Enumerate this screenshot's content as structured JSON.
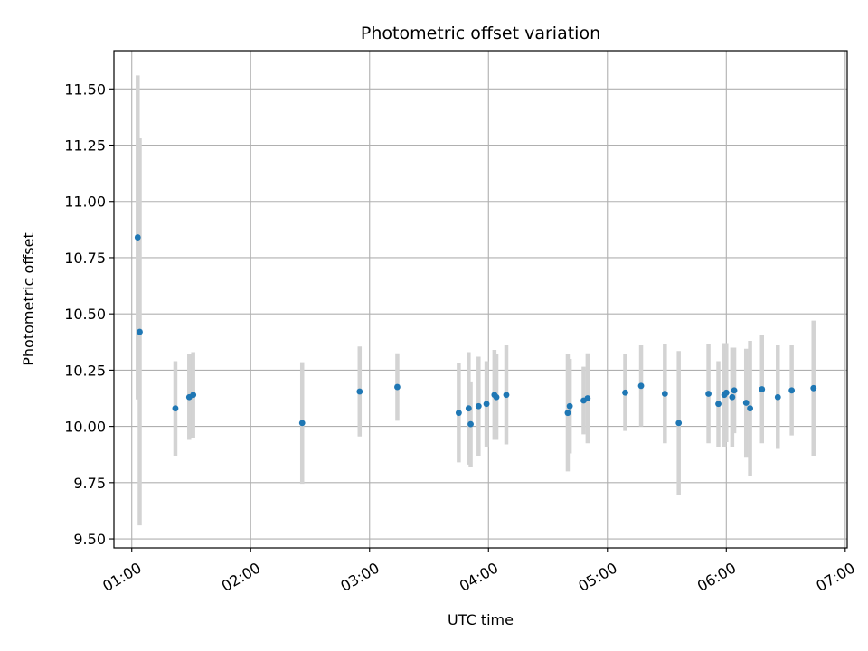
{
  "chart_data": {
    "type": "scatter",
    "title": "Photometric offset variation",
    "xlabel": "UTC time",
    "ylabel": "Photometric offset",
    "xlim": [
      "00:51",
      "07:01"
    ],
    "ylim": [
      9.46,
      11.67
    ],
    "grid": true,
    "x_ticks": [
      "01:00",
      "02:00",
      "03:00",
      "04:00",
      "05:00",
      "06:00",
      "07:00"
    ],
    "y_ticks": [
      "9.50",
      "9.75",
      "10.00",
      "10.25",
      "10.50",
      "10.75",
      "11.00",
      "11.25",
      "11.50"
    ],
    "marker_color": "#1f77b4",
    "errorbar_color": "#d3d3d3",
    "points": [
      {
        "t": "01:03",
        "y": 10.84,
        "err": 0.72
      },
      {
        "t": "01:04",
        "y": 10.42,
        "err": 0.86
      },
      {
        "t": "01:22",
        "y": 10.08,
        "err": 0.21
      },
      {
        "t": "01:29",
        "y": 10.13,
        "err": 0.19
      },
      {
        "t": "01:31",
        "y": 10.14,
        "err": 0.19
      },
      {
        "t": "02:26",
        "y": 10.015,
        "err": 0.27
      },
      {
        "t": "02:55",
        "y": 10.155,
        "err": 0.2
      },
      {
        "t": "03:14",
        "y": 10.175,
        "err": 0.15
      },
      {
        "t": "03:45",
        "y": 10.06,
        "err": 0.22
      },
      {
        "t": "03:50",
        "y": 10.08,
        "err": 0.25
      },
      {
        "t": "03:51",
        "y": 10.01,
        "err": 0.19
      },
      {
        "t": "03:55",
        "y": 10.09,
        "err": 0.22
      },
      {
        "t": "03:59",
        "y": 10.1,
        "err": 0.19
      },
      {
        "t": "04:03",
        "y": 10.14,
        "err": 0.2
      },
      {
        "t": "04:04",
        "y": 10.13,
        "err": 0.19
      },
      {
        "t": "04:09",
        "y": 10.14,
        "err": 0.22
      },
      {
        "t": "04:40",
        "y": 10.06,
        "err": 0.26
      },
      {
        "t": "04:41",
        "y": 10.09,
        "err": 0.21
      },
      {
        "t": "04:48",
        "y": 10.115,
        "err": 0.15
      },
      {
        "t": "04:50",
        "y": 10.125,
        "err": 0.2
      },
      {
        "t": "05:09",
        "y": 10.15,
        "err": 0.17
      },
      {
        "t": "05:17",
        "y": 10.18,
        "err": 0.18
      },
      {
        "t": "05:29",
        "y": 10.145,
        "err": 0.22
      },
      {
        "t": "05:36",
        "y": 10.015,
        "err": 0.32
      },
      {
        "t": "05:51",
        "y": 10.145,
        "err": 0.22
      },
      {
        "t": "05:56",
        "y": 10.1,
        "err": 0.19
      },
      {
        "t": "05:59",
        "y": 10.14,
        "err": 0.23
      },
      {
        "t": "06:00",
        "y": 10.15,
        "err": 0.22
      },
      {
        "t": "06:03",
        "y": 10.13,
        "err": 0.22
      },
      {
        "t": "06:04",
        "y": 10.16,
        "err": 0.19
      },
      {
        "t": "06:10",
        "y": 10.105,
        "err": 0.24
      },
      {
        "t": "06:12",
        "y": 10.08,
        "err": 0.3
      },
      {
        "t": "06:18",
        "y": 10.165,
        "err": 0.24
      },
      {
        "t": "06:26",
        "y": 10.13,
        "err": 0.23
      },
      {
        "t": "06:33",
        "y": 10.16,
        "err": 0.2
      },
      {
        "t": "06:44",
        "y": 10.17,
        "err": 0.3
      }
    ]
  }
}
